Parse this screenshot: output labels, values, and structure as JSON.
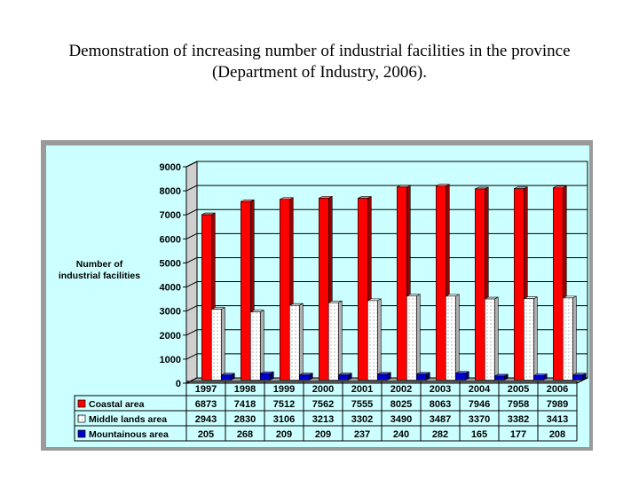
{
  "title_line1": "Demonstration of increasing number of industrial facilities in the province",
  "title_line2": "(Department of Industry, 2006).",
  "chart_data": {
    "type": "bar",
    "ylabel": "Number of industrial facilities",
    "ylabel_line1": "Number of",
    "ylabel_line2": "industrial facilities",
    "ylim": [
      0,
      9000
    ],
    "yticks": [
      "0",
      "1000",
      "2000",
      "3000",
      "4000",
      "5000",
      "6000",
      "7000",
      "8000",
      "9000"
    ],
    "categories": [
      "1997",
      "1998",
      "1999",
      "2000",
      "2001",
      "2002",
      "2003",
      "2004",
      "2005",
      "2006"
    ],
    "series": [
      {
        "name": "Coastal area",
        "color": "#ff0000",
        "values": [
          6873,
          7418,
          7512,
          7562,
          7555,
          8025,
          8063,
          7946,
          7958,
          7989
        ]
      },
      {
        "name": "Middle lands area",
        "color": "#ffffff",
        "values": [
          2943,
          2830,
          3106,
          3213,
          3302,
          3490,
          3487,
          3370,
          3382,
          3413
        ]
      },
      {
        "name": "Mountainous area",
        "color": "#0000cc",
        "values": [
          205,
          268,
          209,
          209,
          237,
          240,
          282,
          165,
          177,
          208
        ]
      }
    ],
    "grid": true,
    "legend": "data-table"
  }
}
